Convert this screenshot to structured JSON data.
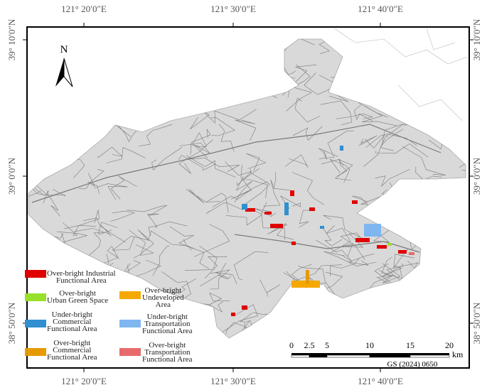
{
  "coordinates": {
    "top": [
      "121° 20′0″E",
      "121° 30′0″E",
      "121° 40′0″E"
    ],
    "bottom": [
      "121° 20′0″E",
      "121° 30′0″E",
      "121° 40′0″E"
    ],
    "left": [
      "39° 10′0″N",
      "39° 0′0″N",
      "38° 50′0″N"
    ],
    "right": [
      "39° 10′0″N",
      "39° 0′0″N",
      "38° 50′0″N"
    ]
  },
  "north": "N",
  "legend": [
    {
      "label": "Over-bright Industrial\nFunctional Area",
      "color": "#e00000"
    },
    {
      "label": "Over-bright\nUrban Green Space",
      "color": "#98e02a"
    },
    {
      "label": "Over-bright\nUndeveloped\nArea",
      "color": "#f5a800"
    },
    {
      "label": "Under-bright\nCommercial\nFunctional Area",
      "color": "#2f8fd0"
    },
    {
      "label": "Under-bright\nTransportation\nFunctional Area",
      "color": "#80b6f0"
    },
    {
      "label": "Over-bright\nCommercial\nFunctional Area",
      "color": "#e59a00"
    },
    {
      "label": "Over-bright\nTransportation\nFunctional Area",
      "color": "#e86a6a"
    }
  ],
  "scale": {
    "ticks": [
      "0",
      "2.5",
      "5",
      "10",
      "15",
      "20"
    ],
    "unit": "km"
  },
  "approval": "GS (2024) 0650"
}
